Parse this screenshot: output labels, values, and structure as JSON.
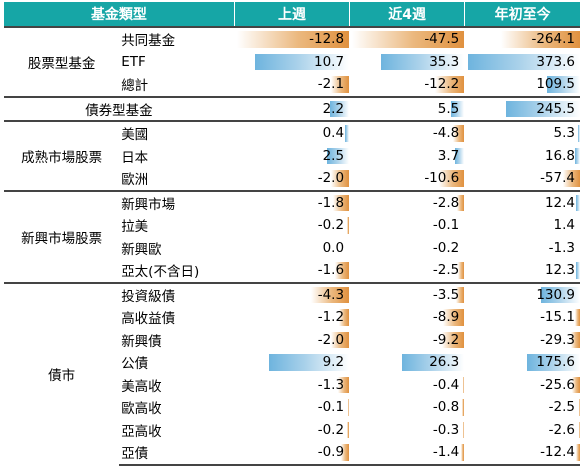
{
  "headers": {
    "category": "基金類型",
    "week": "上週",
    "four_week": "近4週",
    "ytd": "年初至今"
  },
  "scale_max": 264.1,
  "groups": [
    {
      "label": "股票型基金",
      "rows": [
        {
          "name": "共同基金",
          "week": "-12.8",
          "four_week": "-47.5",
          "ytd": "-264.1"
        },
        {
          "name": "ETF",
          "week": "10.7",
          "four_week": "35.3",
          "ytd": "373.6"
        },
        {
          "name": "總計",
          "week": "-2.1",
          "four_week": "-12.2",
          "ytd": "109.5"
        }
      ]
    },
    {
      "label": "債券型基金",
      "single": true,
      "rows": [
        {
          "name": "",
          "week": "2.2",
          "four_week": "5.5",
          "ytd": "245.5"
        }
      ]
    },
    {
      "label": "成熟市場股票",
      "rows": [
        {
          "name": "美國",
          "week": "0.4",
          "four_week": "-4.8",
          "ytd": "5.3"
        },
        {
          "name": "日本",
          "week": "2.5",
          "four_week": "3.7",
          "ytd": "16.8"
        },
        {
          "name": "歐洲",
          "week": "-2.0",
          "four_week": "-10.6",
          "ytd": "-57.4"
        }
      ]
    },
    {
      "label": "新興市場股票",
      "rows": [
        {
          "name": "新興市場",
          "week": "-1.8",
          "four_week": "-2.8",
          "ytd": "12.4"
        },
        {
          "name": "拉美",
          "week": "-0.2",
          "four_week": "-0.1",
          "ytd": "1.4"
        },
        {
          "name": "新興歐",
          "week": "0.0",
          "four_week": "-0.2",
          "ytd": "-1.3"
        },
        {
          "name": "亞太(不含日)",
          "week": "-1.6",
          "four_week": "-2.5",
          "ytd": "12.3"
        }
      ]
    },
    {
      "label": "債市",
      "rows": [
        {
          "name": "投資級債",
          "week": "-4.3",
          "four_week": "-3.5",
          "ytd": "130.9"
        },
        {
          "name": "高收益債",
          "week": "-1.2",
          "four_week": "-8.9",
          "ytd": "-15.1"
        },
        {
          "name": "新興債",
          "week": "-2.0",
          "four_week": "-9.2",
          "ytd": "-29.3"
        },
        {
          "name": "公債",
          "week": "9.2",
          "four_week": "26.3",
          "ytd": "175.6"
        },
        {
          "name": "美高收",
          "week": "-1.3",
          "four_week": "-0.4",
          "ytd": "-25.6"
        },
        {
          "name": "歐高收",
          "week": "-0.1",
          "four_week": "-0.8",
          "ytd": "-2.5"
        },
        {
          "name": "亞高收",
          "week": "-0.2",
          "four_week": "-0.3",
          "ytd": "-2.6"
        },
        {
          "name": "亞債",
          "week": "-0.9",
          "four_week": "-1.4",
          "ytd": "-12.4"
        }
      ]
    }
  ],
  "colors": {
    "header_bg": "#16a6a6",
    "negative_bar": "#e0913f",
    "positive_bar": "#6eb4de"
  }
}
